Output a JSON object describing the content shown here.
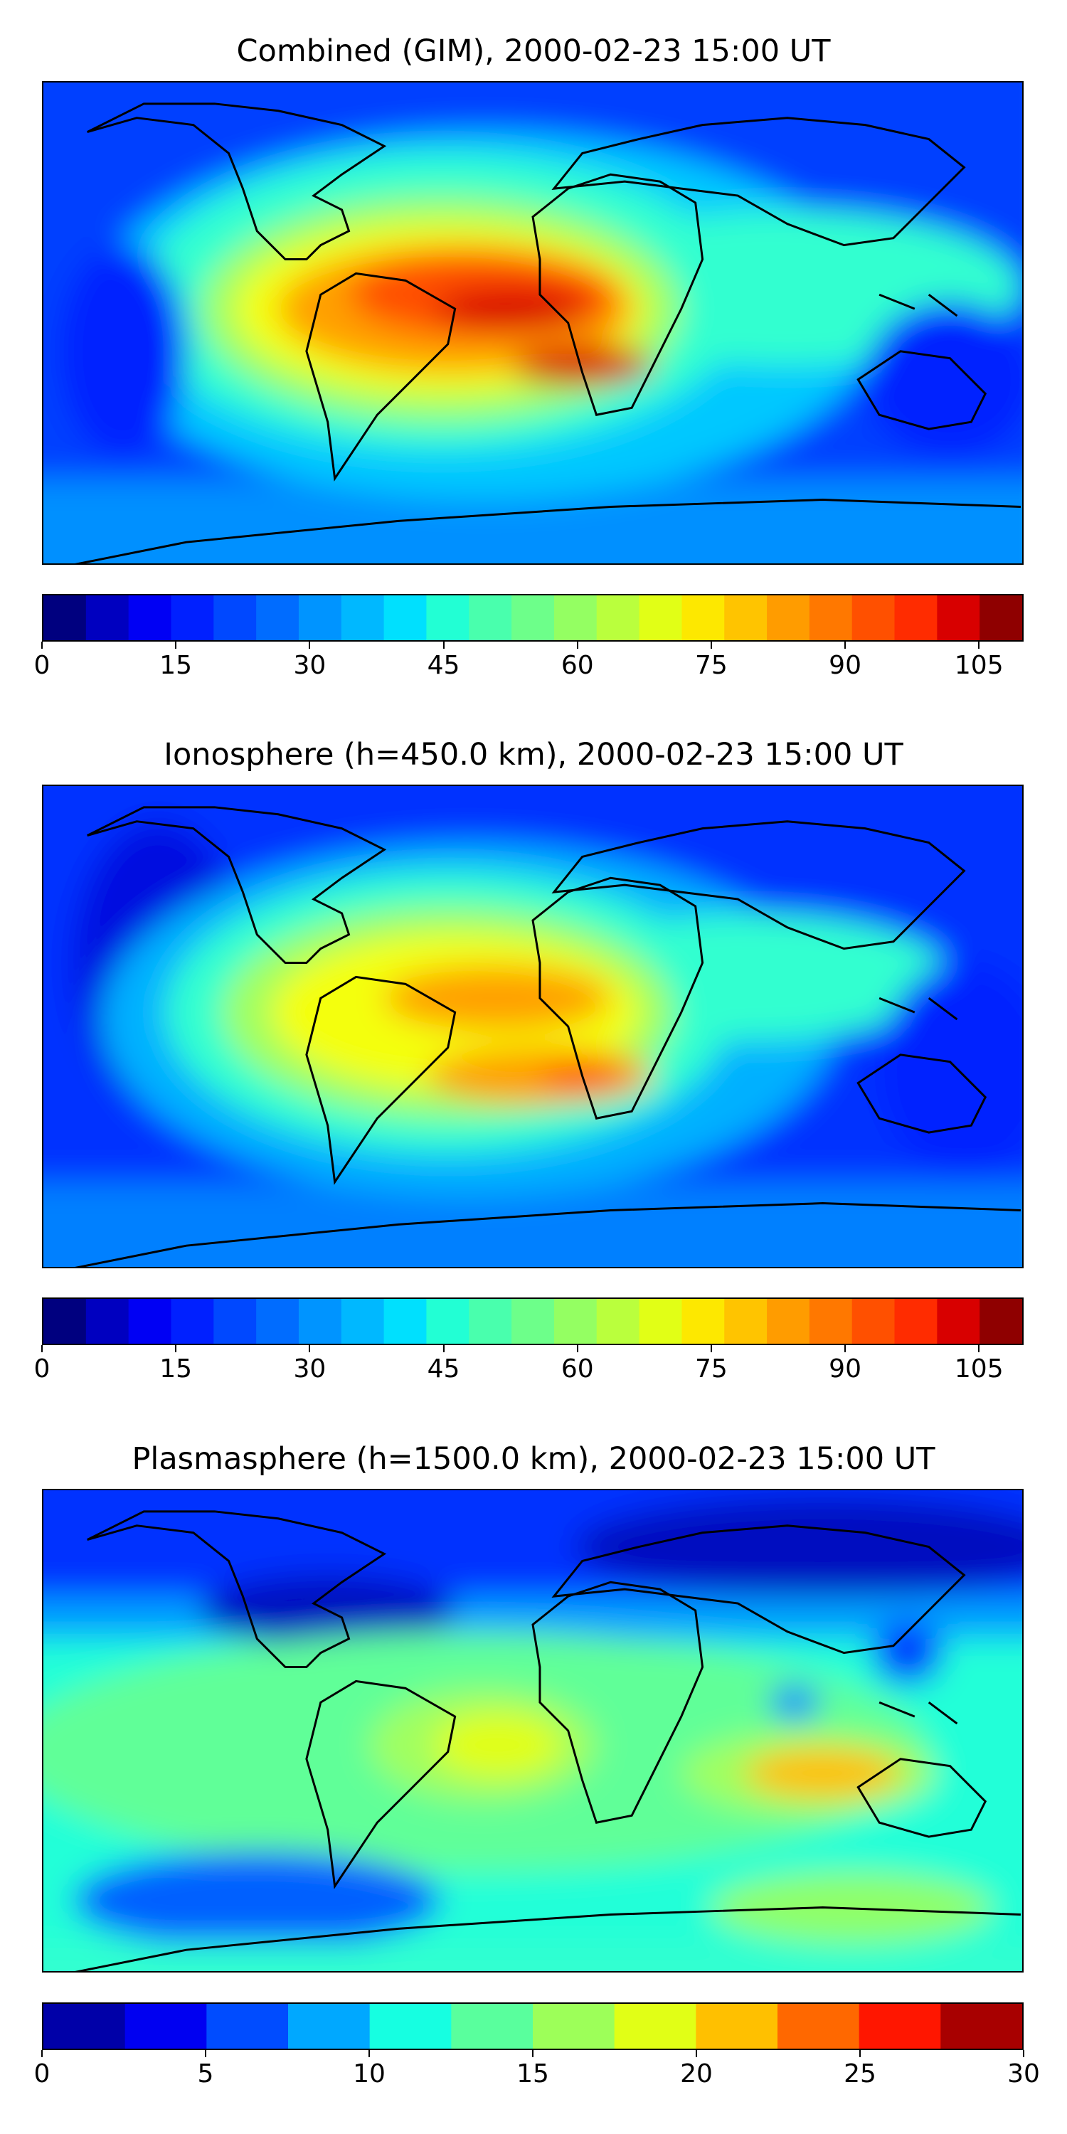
{
  "panels": [
    {
      "title": "Combined (GIM), 2000-02-23 15:00 UT",
      "colorbar": {
        "min": 0,
        "max": 110,
        "step": 5,
        "ticks": [
          "0",
          "15",
          "30",
          "45",
          "60",
          "75",
          "90",
          "105"
        ],
        "colors": [
          "#00007f",
          "#0000c0",
          "#0000f4",
          "#0020ff",
          "#0048ff",
          "#006cff",
          "#0094ff",
          "#00b8ff",
          "#00e0fe",
          "#22ffd4",
          "#49ffad",
          "#6dff8a",
          "#94ff62",
          "#baff3d",
          "#e1ff16",
          "#fde800",
          "#ffc400",
          "#ff9c00",
          "#ff7800",
          "#ff5000",
          "#ff2c00",
          "#d80000",
          "#8f0000"
        ]
      }
    },
    {
      "title": "Ionosphere  (h=450.0 km), 2000-02-23 15:00 UT",
      "colorbar": {
        "min": 0,
        "max": 110,
        "step": 5,
        "ticks": [
          "0",
          "15",
          "30",
          "45",
          "60",
          "75",
          "90",
          "105"
        ],
        "colors": [
          "#00007f",
          "#0000c0",
          "#0000f4",
          "#0020ff",
          "#0048ff",
          "#006cff",
          "#0094ff",
          "#00b8ff",
          "#00e0fe",
          "#22ffd4",
          "#49ffad",
          "#6dff8a",
          "#94ff62",
          "#baff3d",
          "#e1ff16",
          "#fde800",
          "#ffc400",
          "#ff9c00",
          "#ff7800",
          "#ff5000",
          "#ff2c00",
          "#d80000",
          "#8f0000"
        ]
      }
    },
    {
      "title": "Plasmasphere (h=1500.0 km), 2000-02-23 15:00 UT",
      "colorbar": {
        "min": 0,
        "max": 30,
        "step": 2.5,
        "ticks": [
          "0",
          "5",
          "10",
          "15",
          "20",
          "25",
          "30"
        ],
        "colors": [
          "#0000a8",
          "#0000f1",
          "#004cff",
          "#00a8ff",
          "#16ffe1",
          "#59ff9d",
          "#9dff59",
          "#e1ff16",
          "#ffc000",
          "#ff6800",
          "#ff1600",
          "#a80000"
        ]
      }
    }
  ]
}
